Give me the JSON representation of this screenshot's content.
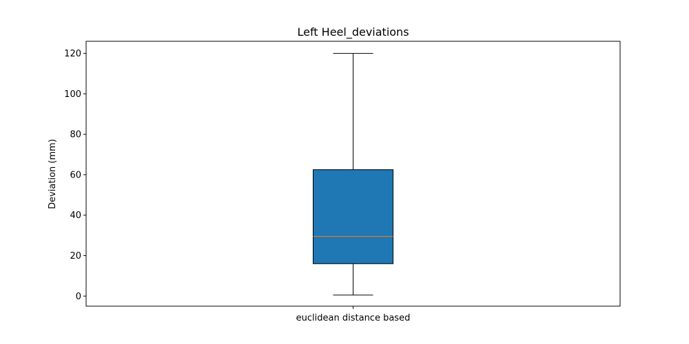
{
  "chart_data": {
    "type": "box",
    "title": "Left Heel_deviations",
    "xlabel": "",
    "ylabel": "Deviation (mm)",
    "categories": [
      "euclidean distance based"
    ],
    "boxes": [
      {
        "label": "euclidean distance based",
        "whisker_low": 0.5,
        "q1": 16,
        "median": 29.5,
        "q3": 62.5,
        "whisker_high": 120
      }
    ],
    "ylim": [
      -5,
      126
    ],
    "yticks": [
      0,
      20,
      40,
      60,
      80,
      100,
      120
    ],
    "grid": false,
    "legend": "none",
    "colors": {
      "box_fill": "#1f77b4",
      "median": "#ff7f0e",
      "edge": "#000000"
    }
  }
}
